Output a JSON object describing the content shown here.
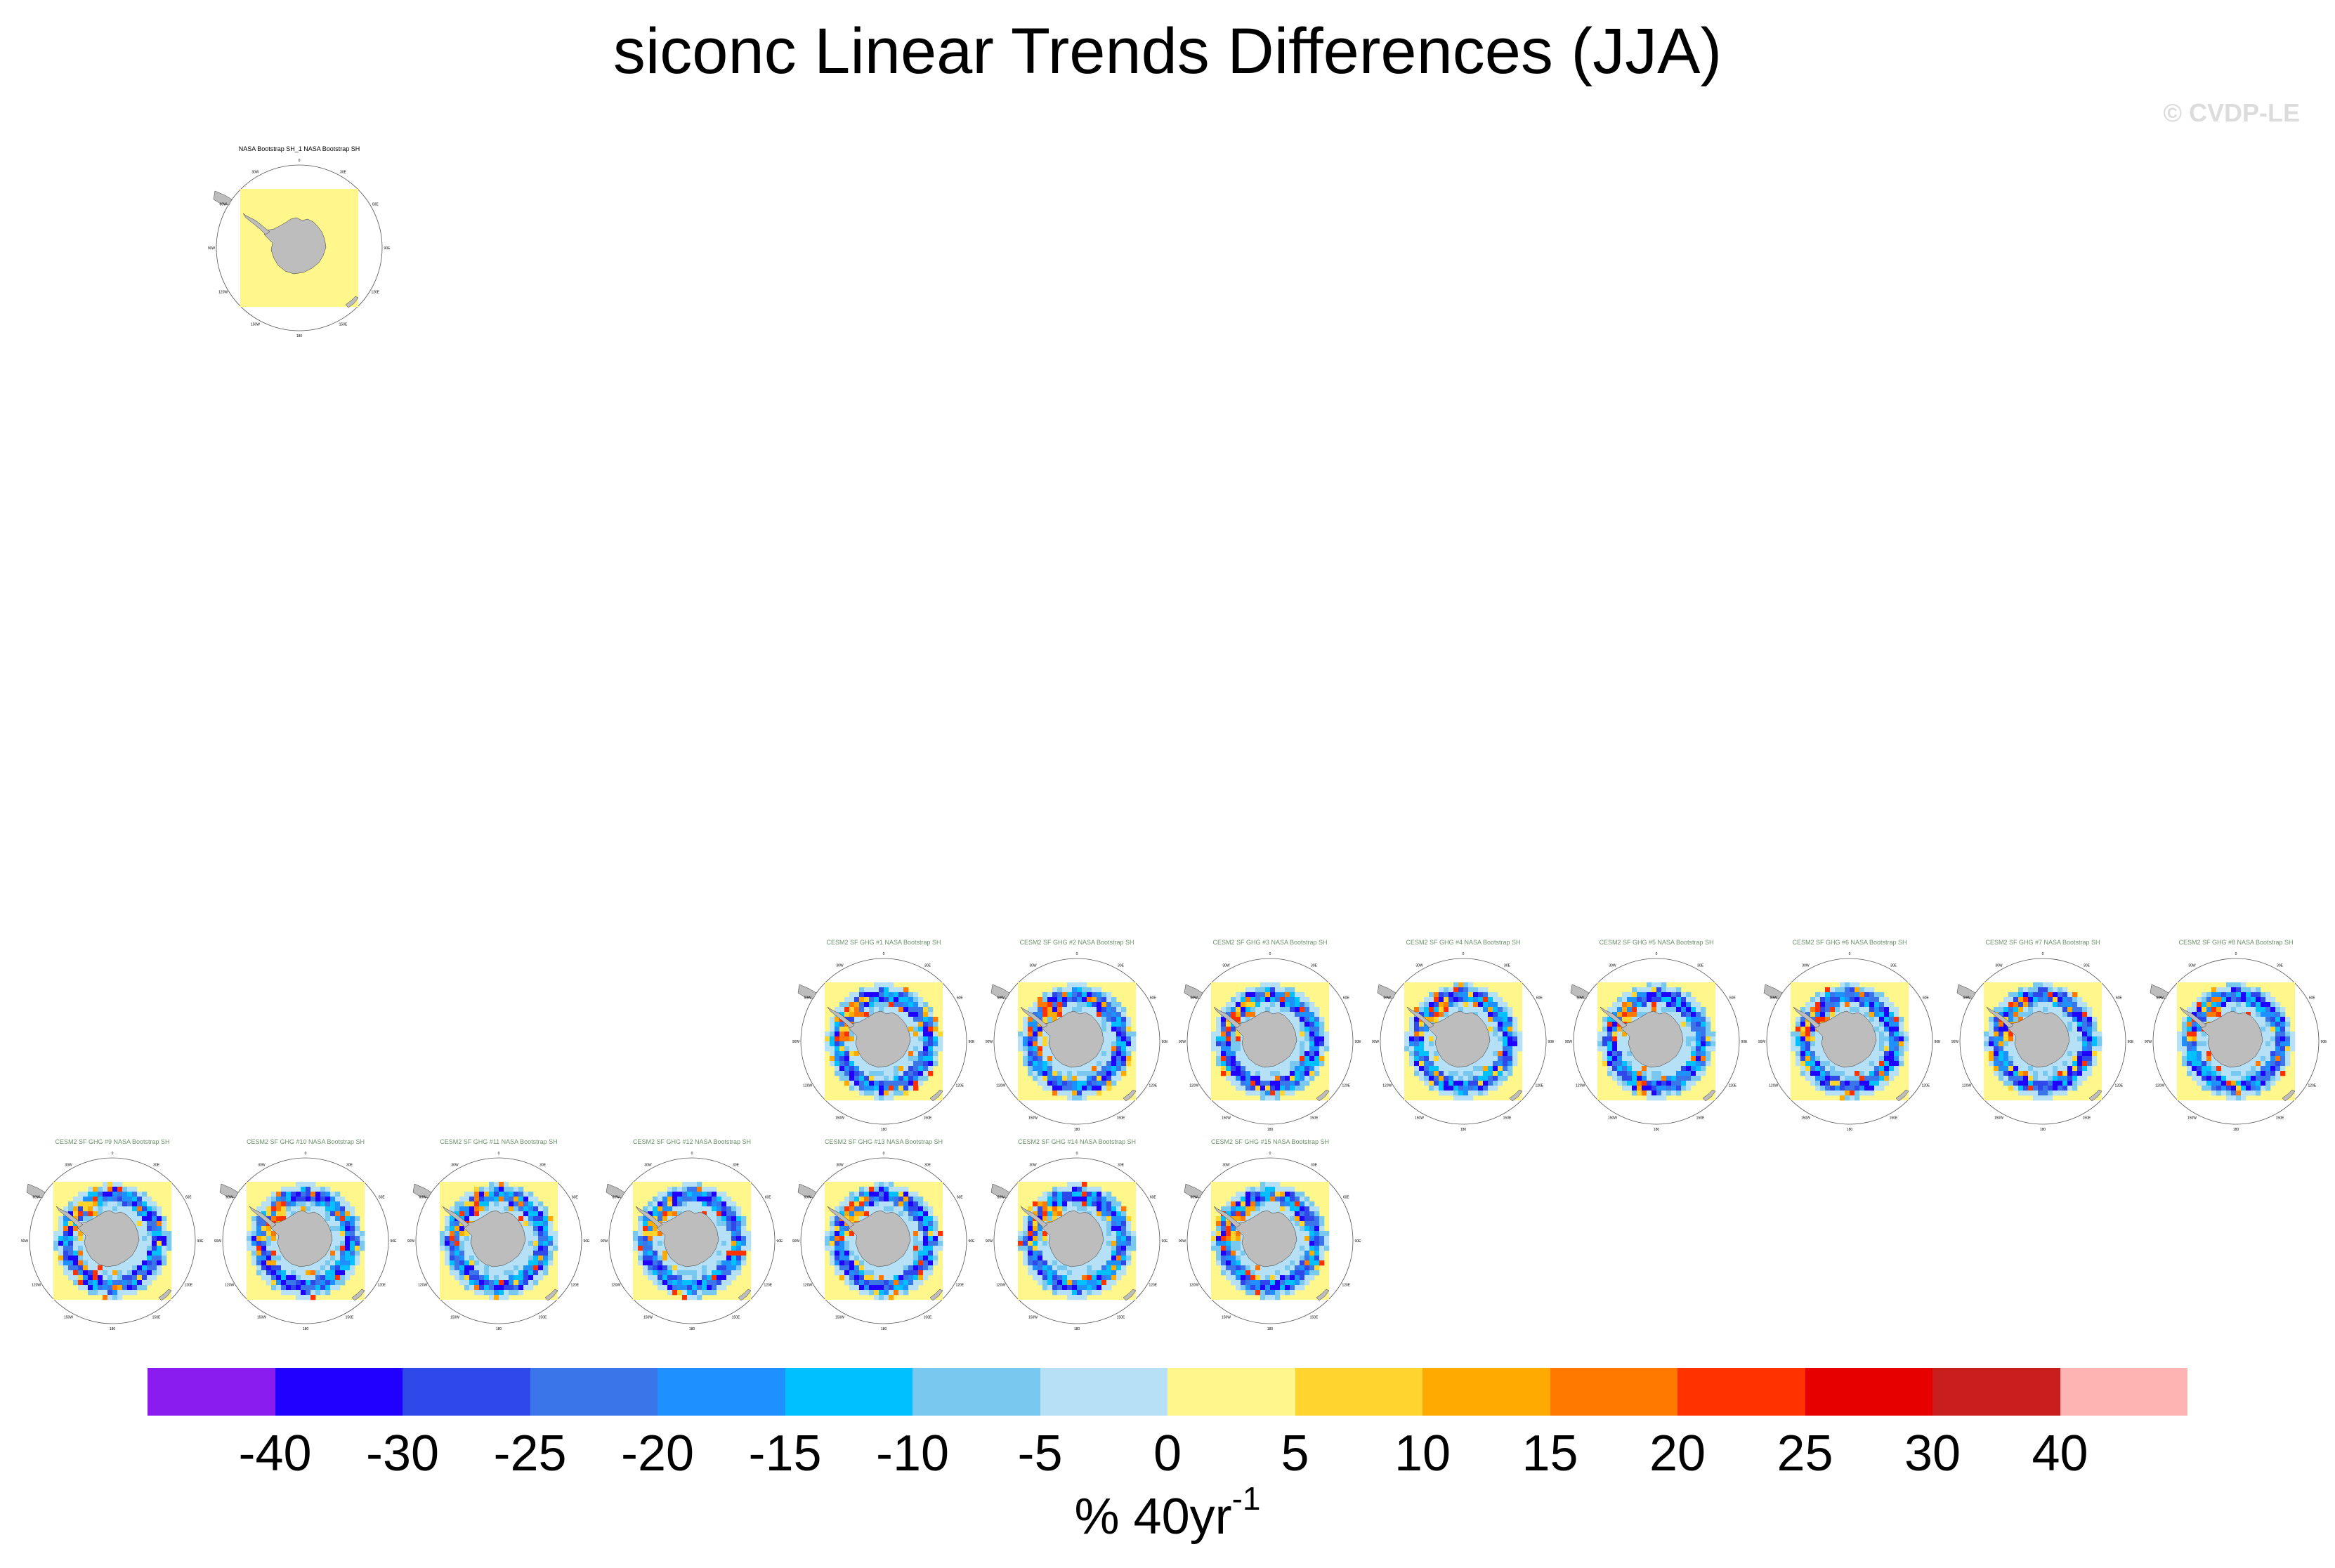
{
  "title": "siconc Linear Trends Differences (JJA)",
  "copyright": "© CVDP-LE",
  "colorbar": {
    "colors": [
      "#8a1cf0",
      "#2000ff",
      "#2e48ea",
      "#3a76ea",
      "#1e90ff",
      "#00c0ff",
      "#78c8f0",
      "#b5e0f5",
      "#fff68c",
      "#ffd42e",
      "#ffaa00",
      "#ff7800",
      "#ff3200",
      "#e60000",
      "#c81e1e",
      "#ffb4b4"
    ],
    "ticks": [
      "-40",
      "-30",
      "-25",
      "-20",
      "-15",
      "-10",
      "-5",
      "0",
      "5",
      "10",
      "15",
      "20",
      "25",
      "30",
      "40"
    ],
    "units_main": "% 40yr",
    "units_sup": "-1"
  },
  "lon_labels": [
    "0",
    "30E",
    "60E",
    "90E",
    "120E",
    "150E",
    "180",
    "150W",
    "120W",
    "90W",
    "60W",
    "30W"
  ],
  "obs_panel": {
    "title": "NASA Bootstrap SH_1 NASA Bootstrap SH"
  },
  "ensemble_panels": [
    {
      "title": "CESM2 SF GHG #1 NASA Bootstrap SH",
      "seed": 1
    },
    {
      "title": "CESM2 SF GHG #2 NASA Bootstrap SH",
      "seed": 2
    },
    {
      "title": "CESM2 SF GHG #3 NASA Bootstrap SH",
      "seed": 3
    },
    {
      "title": "CESM2 SF GHG #4 NASA Bootstrap SH",
      "seed": 4
    },
    {
      "title": "CESM2 SF GHG #5 NASA Bootstrap SH",
      "seed": 5
    },
    {
      "title": "CESM2 SF GHG #6 NASA Bootstrap SH",
      "seed": 6
    },
    {
      "title": "CESM2 SF GHG #7 NASA Bootstrap SH",
      "seed": 7
    },
    {
      "title": "CESM2 SF GHG #8 NASA Bootstrap SH",
      "seed": 8
    },
    {
      "title": "CESM2 SF GHG #9 NASA Bootstrap SH",
      "seed": 9
    },
    {
      "title": "CESM2 SF GHG #10 NASA Bootstrap SH",
      "seed": 10
    },
    {
      "title": "CESM2 SF GHG #11 NASA Bootstrap SH",
      "seed": 11
    },
    {
      "title": "CESM2 SF GHG #12 NASA Bootstrap SH",
      "seed": 12
    },
    {
      "title": "CESM2 SF GHG #13 NASA Bootstrap SH",
      "seed": 13
    },
    {
      "title": "CESM2 SF GHG #14 NASA Bootstrap SH",
      "seed": 14
    },
    {
      "title": "CESM2 SF GHG #15 NASA Bootstrap SH",
      "seed": 15
    }
  ]
}
